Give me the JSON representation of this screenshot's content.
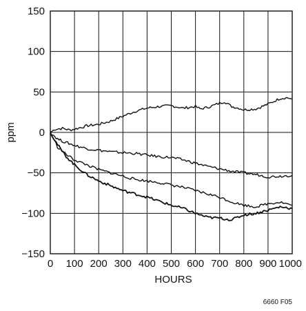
{
  "chart_data": {
    "type": "line",
    "xlabel": "HOURS",
    "ylabel": "ppm",
    "xlim": [
      0,
      1000
    ],
    "ylim": [
      -150,
      150
    ],
    "x_ticks": [
      0,
      100,
      200,
      300,
      400,
      500,
      600,
      700,
      800,
      900,
      1000
    ],
    "y_ticks": [
      -150,
      -100,
      -50,
      0,
      50,
      100,
      150
    ],
    "x_tick_labels": [
      "0",
      "100",
      "200",
      "300",
      "400",
      "500",
      "600",
      "700",
      "800",
      "900",
      "1000"
    ],
    "y_tick_labels": [
      "−150",
      "−100",
      "−50",
      "0",
      "50",
      "100",
      "150"
    ],
    "grid": true,
    "series": [
      {
        "x": [
          0,
          20,
          50,
          80,
          100,
          150,
          200,
          250,
          300,
          350,
          400,
          450,
          500,
          550,
          600,
          620,
          650,
          700,
          720,
          750,
          780,
          800,
          850,
          900,
          950,
          980,
          1000
        ],
        "values": [
          0,
          4,
          5,
          3,
          4,
          8,
          10,
          14,
          20,
          26,
          30,
          32,
          33,
          30,
          32,
          29,
          31,
          36,
          38,
          32,
          30,
          28,
          29,
          35,
          42,
          43,
          41
        ]
      },
      {
        "x": [
          0,
          30,
          60,
          100,
          150,
          200,
          250,
          300,
          350,
          400,
          450,
          500,
          550,
          600,
          650,
          700,
          750,
          800,
          850,
          900,
          950,
          1000
        ],
        "values": [
          0,
          -8,
          -12,
          -16,
          -20,
          -22,
          -24,
          -25,
          -26,
          -28,
          -30,
          -31,
          -34,
          -38,
          -42,
          -45,
          -48,
          -50,
          -52,
          -55,
          -54,
          -53
        ]
      },
      {
        "x": [
          0,
          30,
          60,
          100,
          150,
          200,
          250,
          300,
          350,
          400,
          450,
          500,
          550,
          600,
          650,
          700,
          750,
          800,
          850,
          900,
          950,
          1000
        ],
        "values": [
          0,
          -18,
          -26,
          -34,
          -40,
          -46,
          -50,
          -54,
          -58,
          -60,
          -62,
          -65,
          -68,
          -72,
          -76,
          -80,
          -86,
          -90,
          -92,
          -88,
          -86,
          -90
        ]
      },
      {
        "x": [
          0,
          30,
          60,
          100,
          150,
          200,
          250,
          300,
          350,
          400,
          450,
          500,
          550,
          600,
          650,
          700,
          750,
          800,
          850,
          900,
          950,
          1000
        ],
        "values": [
          0,
          -15,
          -28,
          -40,
          -52,
          -60,
          -66,
          -72,
          -76,
          -80,
          -85,
          -90,
          -94,
          -100,
          -105,
          -106,
          -108,
          -102,
          -100,
          -96,
          -92,
          -94
        ]
      }
    ]
  },
  "figure_id": "6660 F05",
  "colors": {
    "line": "#111111",
    "grid": "#111111",
    "background": "#ffffff"
  }
}
